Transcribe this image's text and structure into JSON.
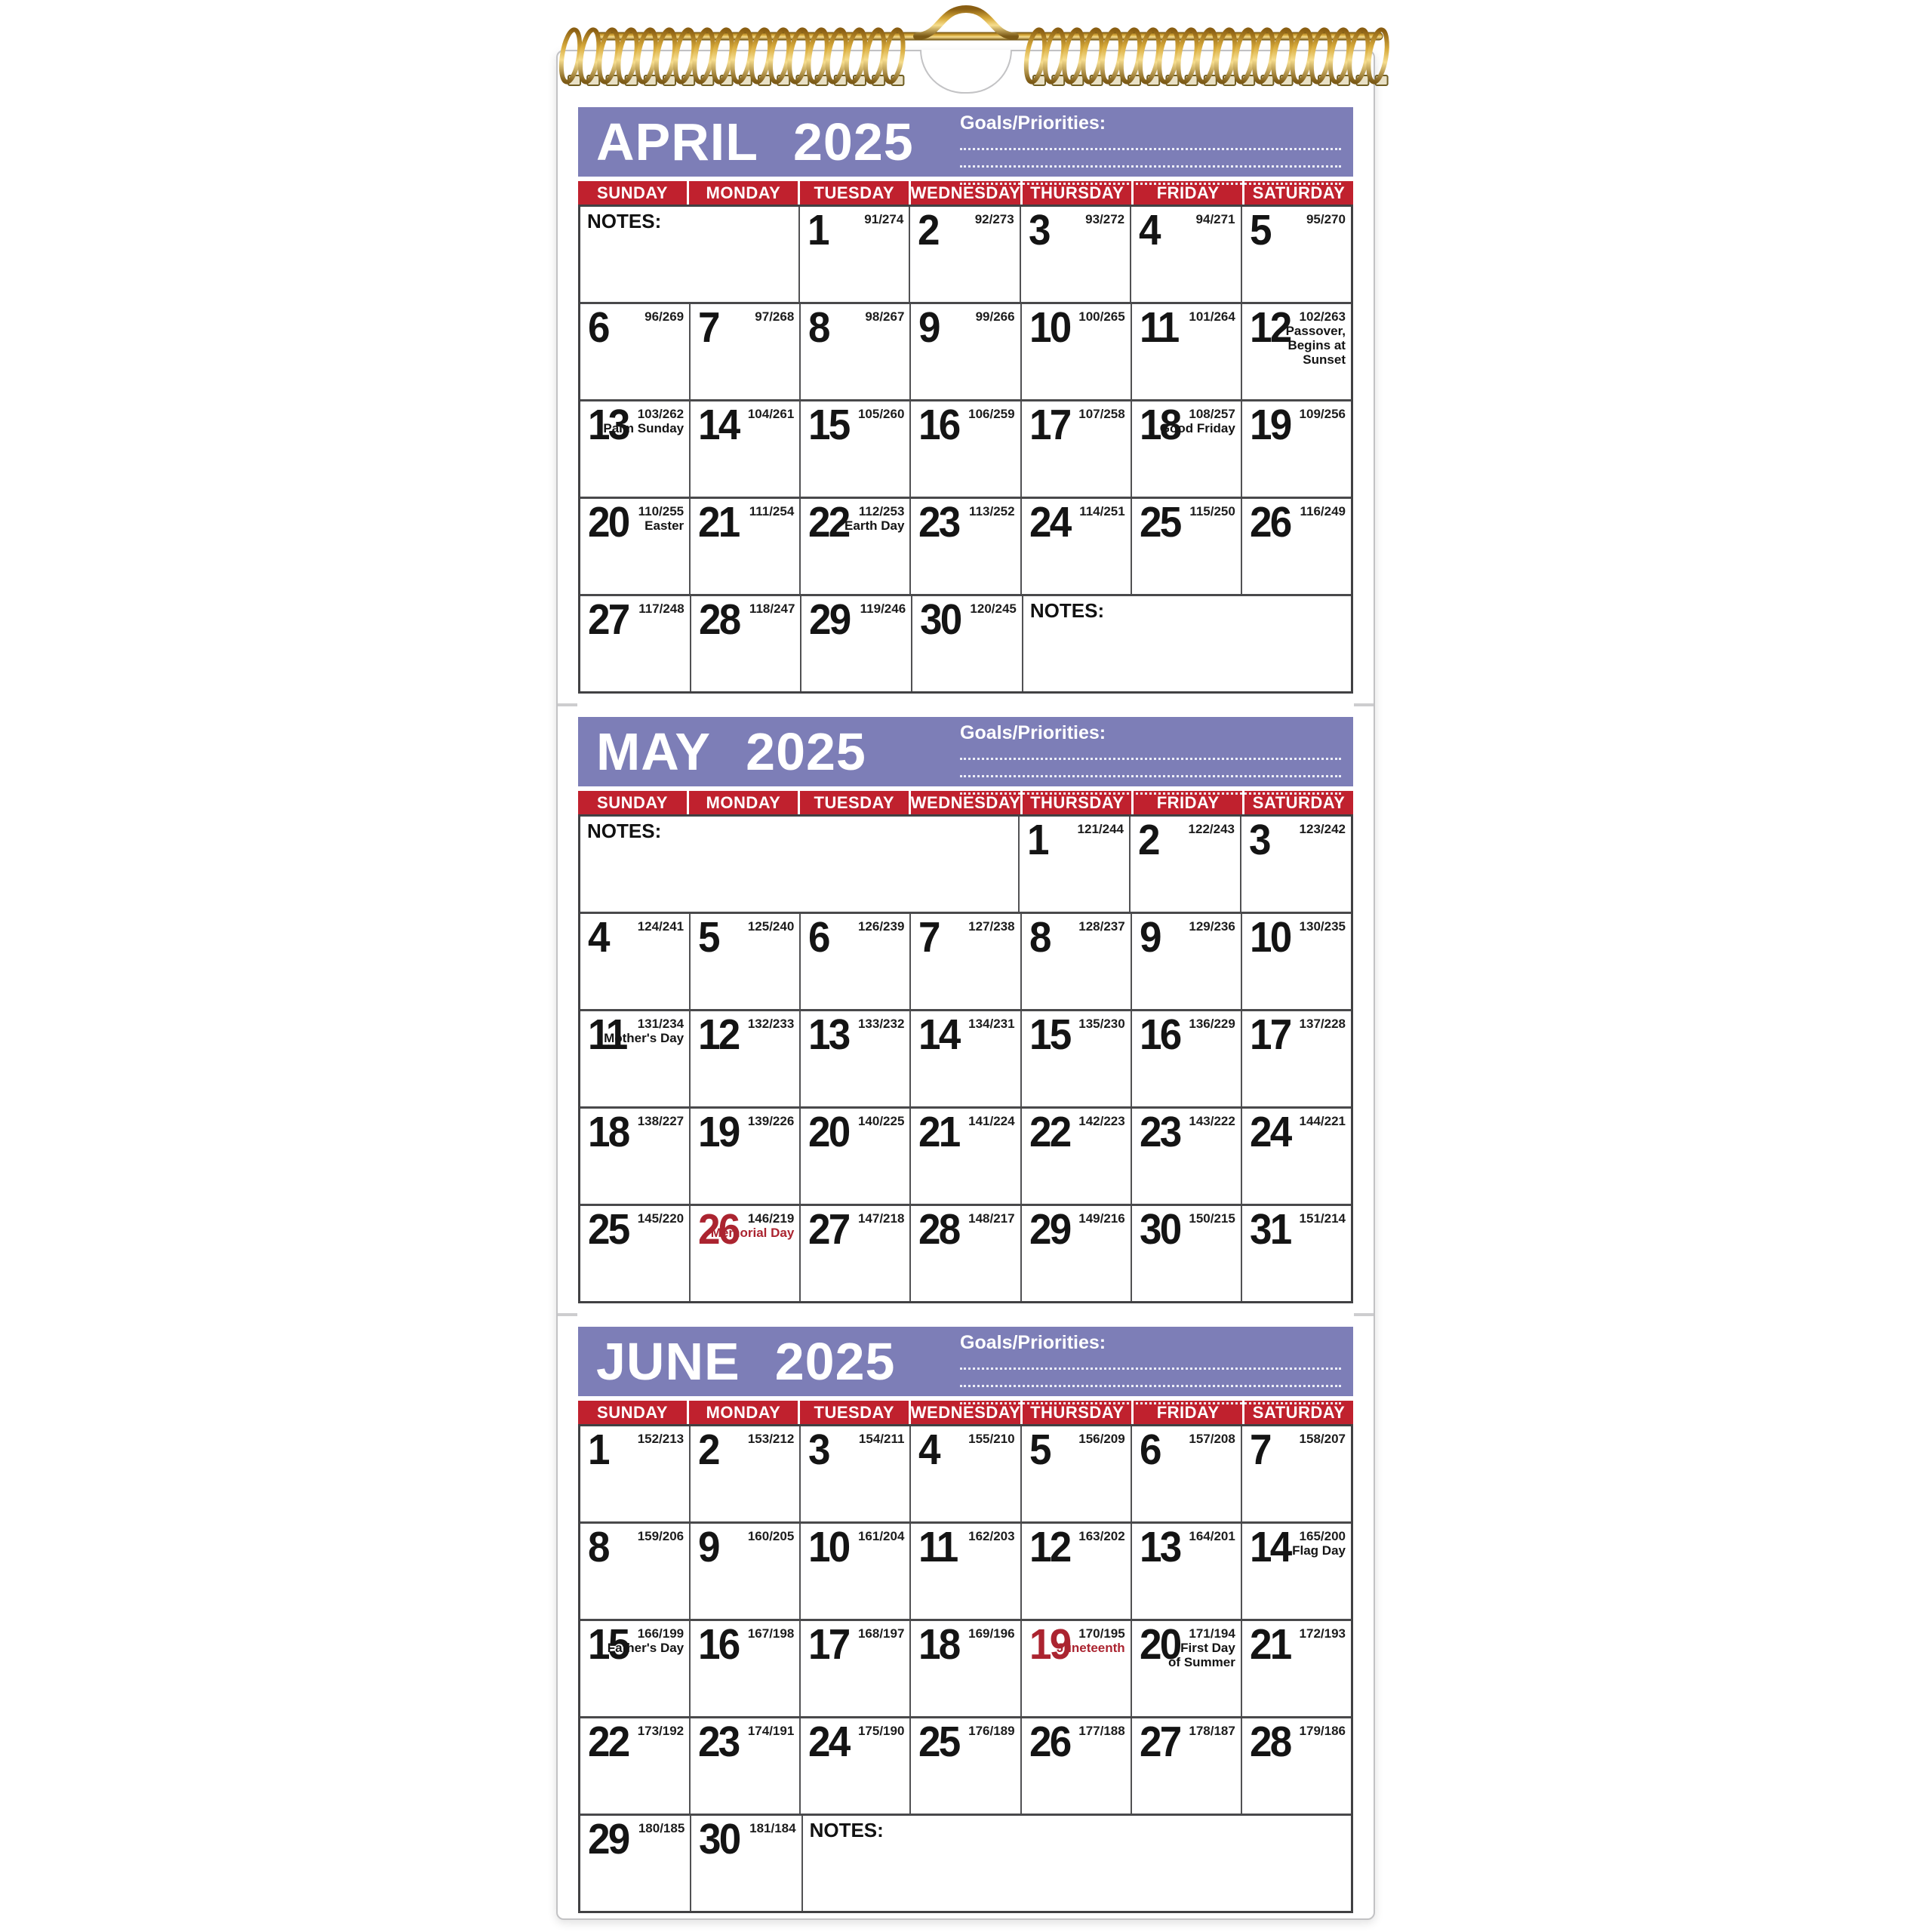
{
  "calendar": {
    "weekdays": [
      "SUNDAY",
      "MONDAY",
      "TUESDAY",
      "WEDNESDAY",
      "THURSDAY",
      "FRIDAY",
      "SATURDAY"
    ],
    "goals_label": "Goals/Priorities:",
    "notes_label": "NOTES:",
    "colors": {
      "header_purple": "#7d7eb7",
      "daybar_red": "#c0212e",
      "holiday_red": "#ab2430",
      "binding_gold": "#c9962e"
    },
    "months": [
      {
        "name": "APRIL",
        "year": "2025",
        "rows": [
          [
            {
              "notes": true,
              "span": 2
            },
            {
              "day": "1",
              "julian": "91/274"
            },
            {
              "day": "2",
              "julian": "92/273"
            },
            {
              "day": "3",
              "julian": "93/272"
            },
            {
              "day": "4",
              "julian": "94/271"
            },
            {
              "day": "5",
              "julian": "95/270"
            }
          ],
          [
            {
              "day": "6",
              "julian": "96/269"
            },
            {
              "day": "7",
              "julian": "97/268"
            },
            {
              "day": "8",
              "julian": "98/267"
            },
            {
              "day": "9",
              "julian": "99/266"
            },
            {
              "day": "10",
              "julian": "100/265"
            },
            {
              "day": "11",
              "julian": "101/264"
            },
            {
              "day": "12",
              "julian": "102/263",
              "holiday": [
                "Passover,",
                "Begins at Sunset"
              ]
            }
          ],
          [
            {
              "day": "13",
              "julian": "103/262",
              "holiday": [
                "Palm Sunday"
              ]
            },
            {
              "day": "14",
              "julian": "104/261"
            },
            {
              "day": "15",
              "julian": "105/260"
            },
            {
              "day": "16",
              "julian": "106/259"
            },
            {
              "day": "17",
              "julian": "107/258"
            },
            {
              "day": "18",
              "julian": "108/257",
              "holiday": [
                "Good Friday"
              ]
            },
            {
              "day": "19",
              "julian": "109/256"
            }
          ],
          [
            {
              "day": "20",
              "julian": "110/255",
              "holiday": [
                "Easter"
              ]
            },
            {
              "day": "21",
              "julian": "111/254"
            },
            {
              "day": "22",
              "julian": "112/253",
              "holiday": [
                "Earth Day"
              ]
            },
            {
              "day": "23",
              "julian": "113/252"
            },
            {
              "day": "24",
              "julian": "114/251"
            },
            {
              "day": "25",
              "julian": "115/250"
            },
            {
              "day": "26",
              "julian": "116/249"
            }
          ],
          [
            {
              "day": "27",
              "julian": "117/248"
            },
            {
              "day": "28",
              "julian": "118/247"
            },
            {
              "day": "29",
              "julian": "119/246"
            },
            {
              "day": "30",
              "julian": "120/245"
            },
            {
              "notes": true,
              "span": 3
            }
          ]
        ]
      },
      {
        "name": "MAY",
        "year": "2025",
        "rows": [
          [
            {
              "notes": true,
              "span": 4
            },
            {
              "day": "1",
              "julian": "121/244"
            },
            {
              "day": "2",
              "julian": "122/243"
            },
            {
              "day": "3",
              "julian": "123/242"
            }
          ],
          [
            {
              "day": "4",
              "julian": "124/241"
            },
            {
              "day": "5",
              "julian": "125/240"
            },
            {
              "day": "6",
              "julian": "126/239"
            },
            {
              "day": "7",
              "julian": "127/238"
            },
            {
              "day": "8",
              "julian": "128/237"
            },
            {
              "day": "9",
              "julian": "129/236"
            },
            {
              "day": "10",
              "julian": "130/235"
            }
          ],
          [
            {
              "day": "11",
              "julian": "131/234",
              "holiday": [
                "Mother's Day"
              ]
            },
            {
              "day": "12",
              "julian": "132/233"
            },
            {
              "day": "13",
              "julian": "133/232"
            },
            {
              "day": "14",
              "julian": "134/231"
            },
            {
              "day": "15",
              "julian": "135/230"
            },
            {
              "day": "16",
              "julian": "136/229"
            },
            {
              "day": "17",
              "julian": "137/228"
            }
          ],
          [
            {
              "day": "18",
              "julian": "138/227"
            },
            {
              "day": "19",
              "julian": "139/226"
            },
            {
              "day": "20",
              "julian": "140/225"
            },
            {
              "day": "21",
              "julian": "141/224"
            },
            {
              "day": "22",
              "julian": "142/223"
            },
            {
              "day": "23",
              "julian": "143/222"
            },
            {
              "day": "24",
              "julian": "144/221"
            }
          ],
          [
            {
              "day": "25",
              "julian": "145/220"
            },
            {
              "day": "26",
              "julian": "146/219",
              "holiday": [
                "Memorial Day"
              ],
              "red": true
            },
            {
              "day": "27",
              "julian": "147/218"
            },
            {
              "day": "28",
              "julian": "148/217"
            },
            {
              "day": "29",
              "julian": "149/216"
            },
            {
              "day": "30",
              "julian": "150/215"
            },
            {
              "day": "31",
              "julian": "151/214"
            }
          ]
        ]
      },
      {
        "name": "JUNE",
        "year": "2025",
        "rows": [
          [
            {
              "day": "1",
              "julian": "152/213"
            },
            {
              "day": "2",
              "julian": "153/212"
            },
            {
              "day": "3",
              "julian": "154/211"
            },
            {
              "day": "4",
              "julian": "155/210"
            },
            {
              "day": "5",
              "julian": "156/209"
            },
            {
              "day": "6",
              "julian": "157/208"
            },
            {
              "day": "7",
              "julian": "158/207"
            }
          ],
          [
            {
              "day": "8",
              "julian": "159/206"
            },
            {
              "day": "9",
              "julian": "160/205"
            },
            {
              "day": "10",
              "julian": "161/204"
            },
            {
              "day": "11",
              "julian": "162/203"
            },
            {
              "day": "12",
              "julian": "163/202"
            },
            {
              "day": "13",
              "julian": "164/201"
            },
            {
              "day": "14",
              "julian": "165/200",
              "holiday": [
                "Flag Day"
              ]
            }
          ],
          [
            {
              "day": "15",
              "julian": "166/199",
              "holiday": [
                "Father's Day"
              ]
            },
            {
              "day": "16",
              "julian": "167/198"
            },
            {
              "day": "17",
              "julian": "168/197"
            },
            {
              "day": "18",
              "julian": "169/196"
            },
            {
              "day": "19",
              "julian": "170/195",
              "holiday": [
                "Juneteenth"
              ],
              "red": true
            },
            {
              "day": "20",
              "julian": "171/194",
              "holiday": [
                "First Day",
                "of Summer"
              ]
            },
            {
              "day": "21",
              "julian": "172/193"
            }
          ],
          [
            {
              "day": "22",
              "julian": "173/192"
            },
            {
              "day": "23",
              "julian": "174/191"
            },
            {
              "day": "24",
              "julian": "175/190"
            },
            {
              "day": "25",
              "julian": "176/189"
            },
            {
              "day": "26",
              "julian": "177/188"
            },
            {
              "day": "27",
              "julian": "178/187"
            },
            {
              "day": "28",
              "julian": "179/186"
            }
          ],
          [
            {
              "day": "29",
              "julian": "180/185"
            },
            {
              "day": "30",
              "julian": "181/184"
            },
            {
              "notes": true,
              "span": 5
            }
          ]
        ]
      }
    ]
  }
}
